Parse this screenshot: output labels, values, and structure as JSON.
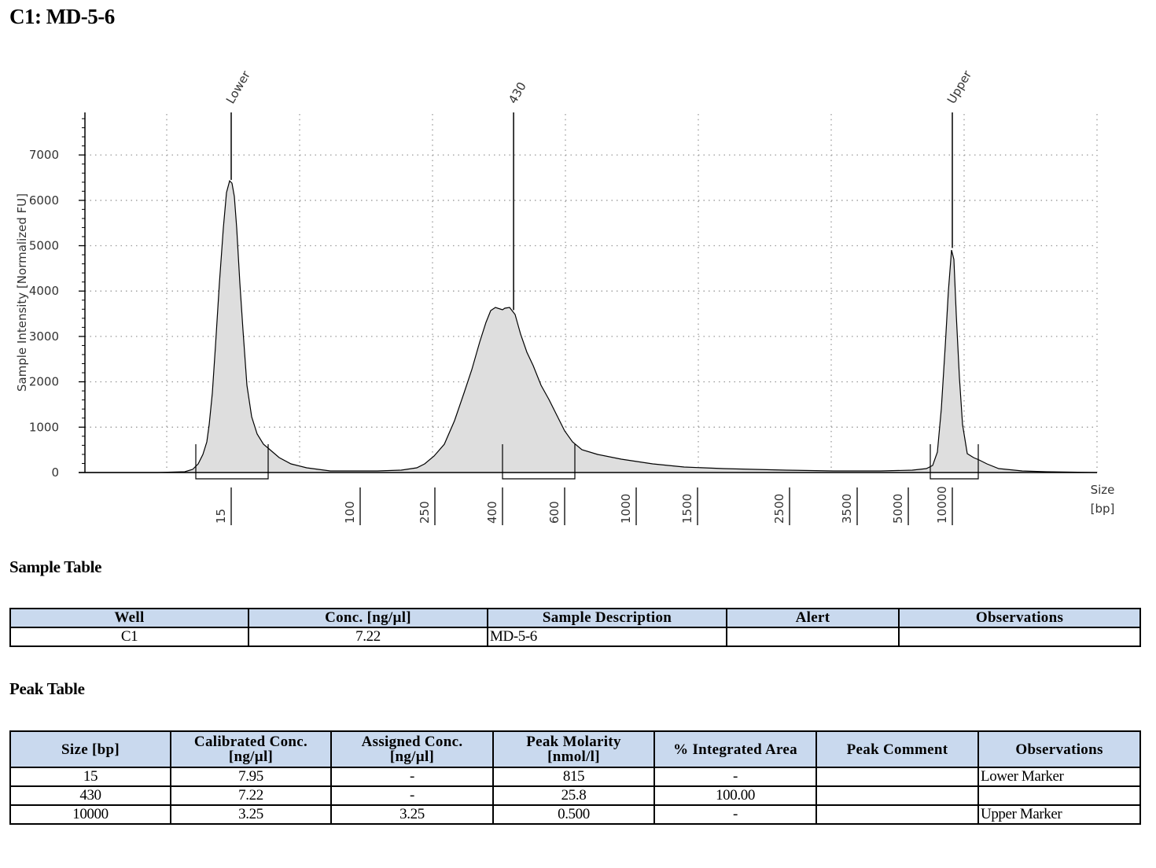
{
  "title": "C1: MD-5-6",
  "chart_data": {
    "type": "area",
    "ylabel": "Sample Intensity [Normalized FU]",
    "xlabel": "Size\n[bp]",
    "xlabel_lines": [
      "Size",
      "[bp]"
    ],
    "y_ticks": [
      0,
      1000,
      2000,
      3000,
      4000,
      5000,
      6000,
      7000
    ],
    "ylim": [
      -200,
      7950
    ],
    "x_scale": "nonlinear (size ladder)",
    "x_ticks": [
      "15",
      "100",
      "250",
      "400",
      "600",
      "1000",
      "1500",
      "2500",
      "3500",
      "5000",
      "10000"
    ],
    "grid": "dotted",
    "peak_labels": [
      "Lower",
      "430",
      "Upper"
    ],
    "series": [
      {
        "points": [
          {
            "x": 15,
            "y": 6450
          },
          {
            "x": 400,
            "y": 3650
          },
          {
            "x": 430,
            "y": 3580
          },
          {
            "x": 460,
            "y": 3650
          },
          {
            "x": 10000,
            "y": 4950
          }
        ]
      }
    ],
    "fill": "#dedede",
    "line_color": "#000000"
  },
  "sample_table": {
    "title": "Sample Table",
    "headers": [
      "Well",
      "Conc. [ng/µl]",
      "Sample Description",
      "Alert",
      "Observations"
    ],
    "rows": [
      [
        "C1",
        "7.22",
        "MD-5-6",
        "",
        ""
      ]
    ]
  },
  "peak_table": {
    "title": "Peak Table",
    "headers": [
      "Size [bp]",
      "Calibrated Conc.\n[ng/µl]",
      "Assigned Conc.\n[ng/µl]",
      "Peak Molarity\n[nmol/l]",
      "% Integrated Area",
      "Peak Comment",
      "Observations"
    ],
    "header_lines": [
      [
        "Size [bp]"
      ],
      [
        "Calibrated Conc.",
        "[ng/µl]"
      ],
      [
        "Assigned Conc.",
        "[ng/µl]"
      ],
      [
        "Peak Molarity",
        "[nmol/l]"
      ],
      [
        "% Integrated Area"
      ],
      [
        "Peak Comment"
      ],
      [
        "Observations"
      ]
    ],
    "rows": [
      [
        "15",
        "7.95",
        "-",
        "815",
        "-",
        "",
        "Lower Marker"
      ],
      [
        "430",
        "7.22",
        "-",
        "25.8",
        "100.00",
        "",
        ""
      ],
      [
        "10000",
        "3.25",
        "3.25",
        "0.500",
        "-",
        "",
        "Upper Marker"
      ]
    ]
  }
}
